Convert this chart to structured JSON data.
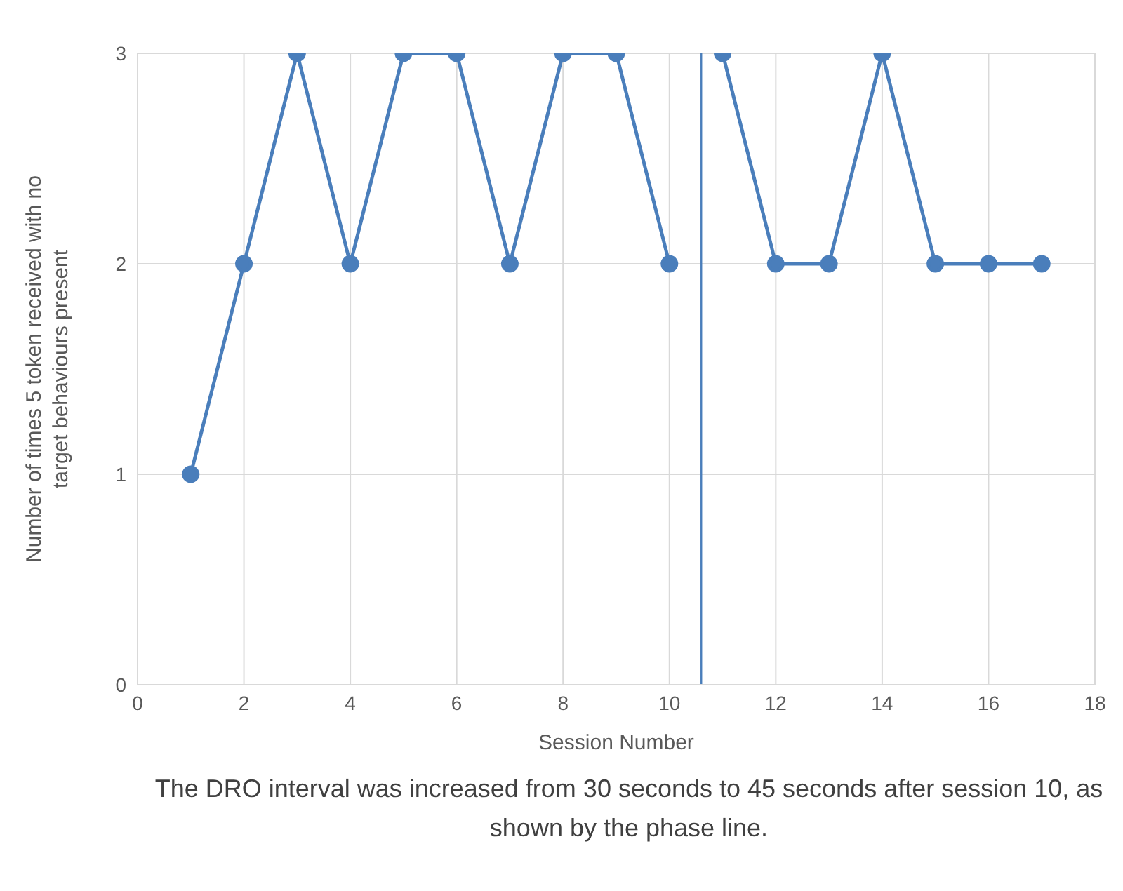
{
  "chart_data": {
    "type": "line",
    "xlabel": "Session Number",
    "ylabel": "Number of times 5 token received with no target behaviours present",
    "series": [
      {
        "color": "#4a7ebb",
        "x": [
          1,
          2,
          3,
          4,
          5,
          6,
          7,
          8,
          9,
          10
        ],
        "values": [
          1,
          2,
          3,
          2,
          3,
          3,
          2,
          3,
          3,
          2
        ]
      },
      {
        "color": "#4a7ebb",
        "x": [
          11,
          12,
          13,
          14,
          15,
          16,
          17
        ],
        "values": [
          3,
          2,
          2,
          3,
          2,
          2,
          2
        ]
      }
    ],
    "xlim": [
      0,
      18
    ],
    "xticks": [
      0,
      2,
      4,
      6,
      8,
      10,
      12,
      14,
      16,
      18
    ],
    "ylim": [
      0,
      3
    ],
    "yticks": [
      0,
      1,
      2,
      3
    ],
    "grid": true,
    "marker": "circle",
    "line_style": "solid",
    "ref_lines": [
      {
        "axis": "x",
        "value": 10.6,
        "color": "#4a7ebb"
      }
    ],
    "annotations": [
      "The DRO interval was increased from 30 seconds to 45 seconds after session 10, as shown by the phase line."
    ]
  }
}
